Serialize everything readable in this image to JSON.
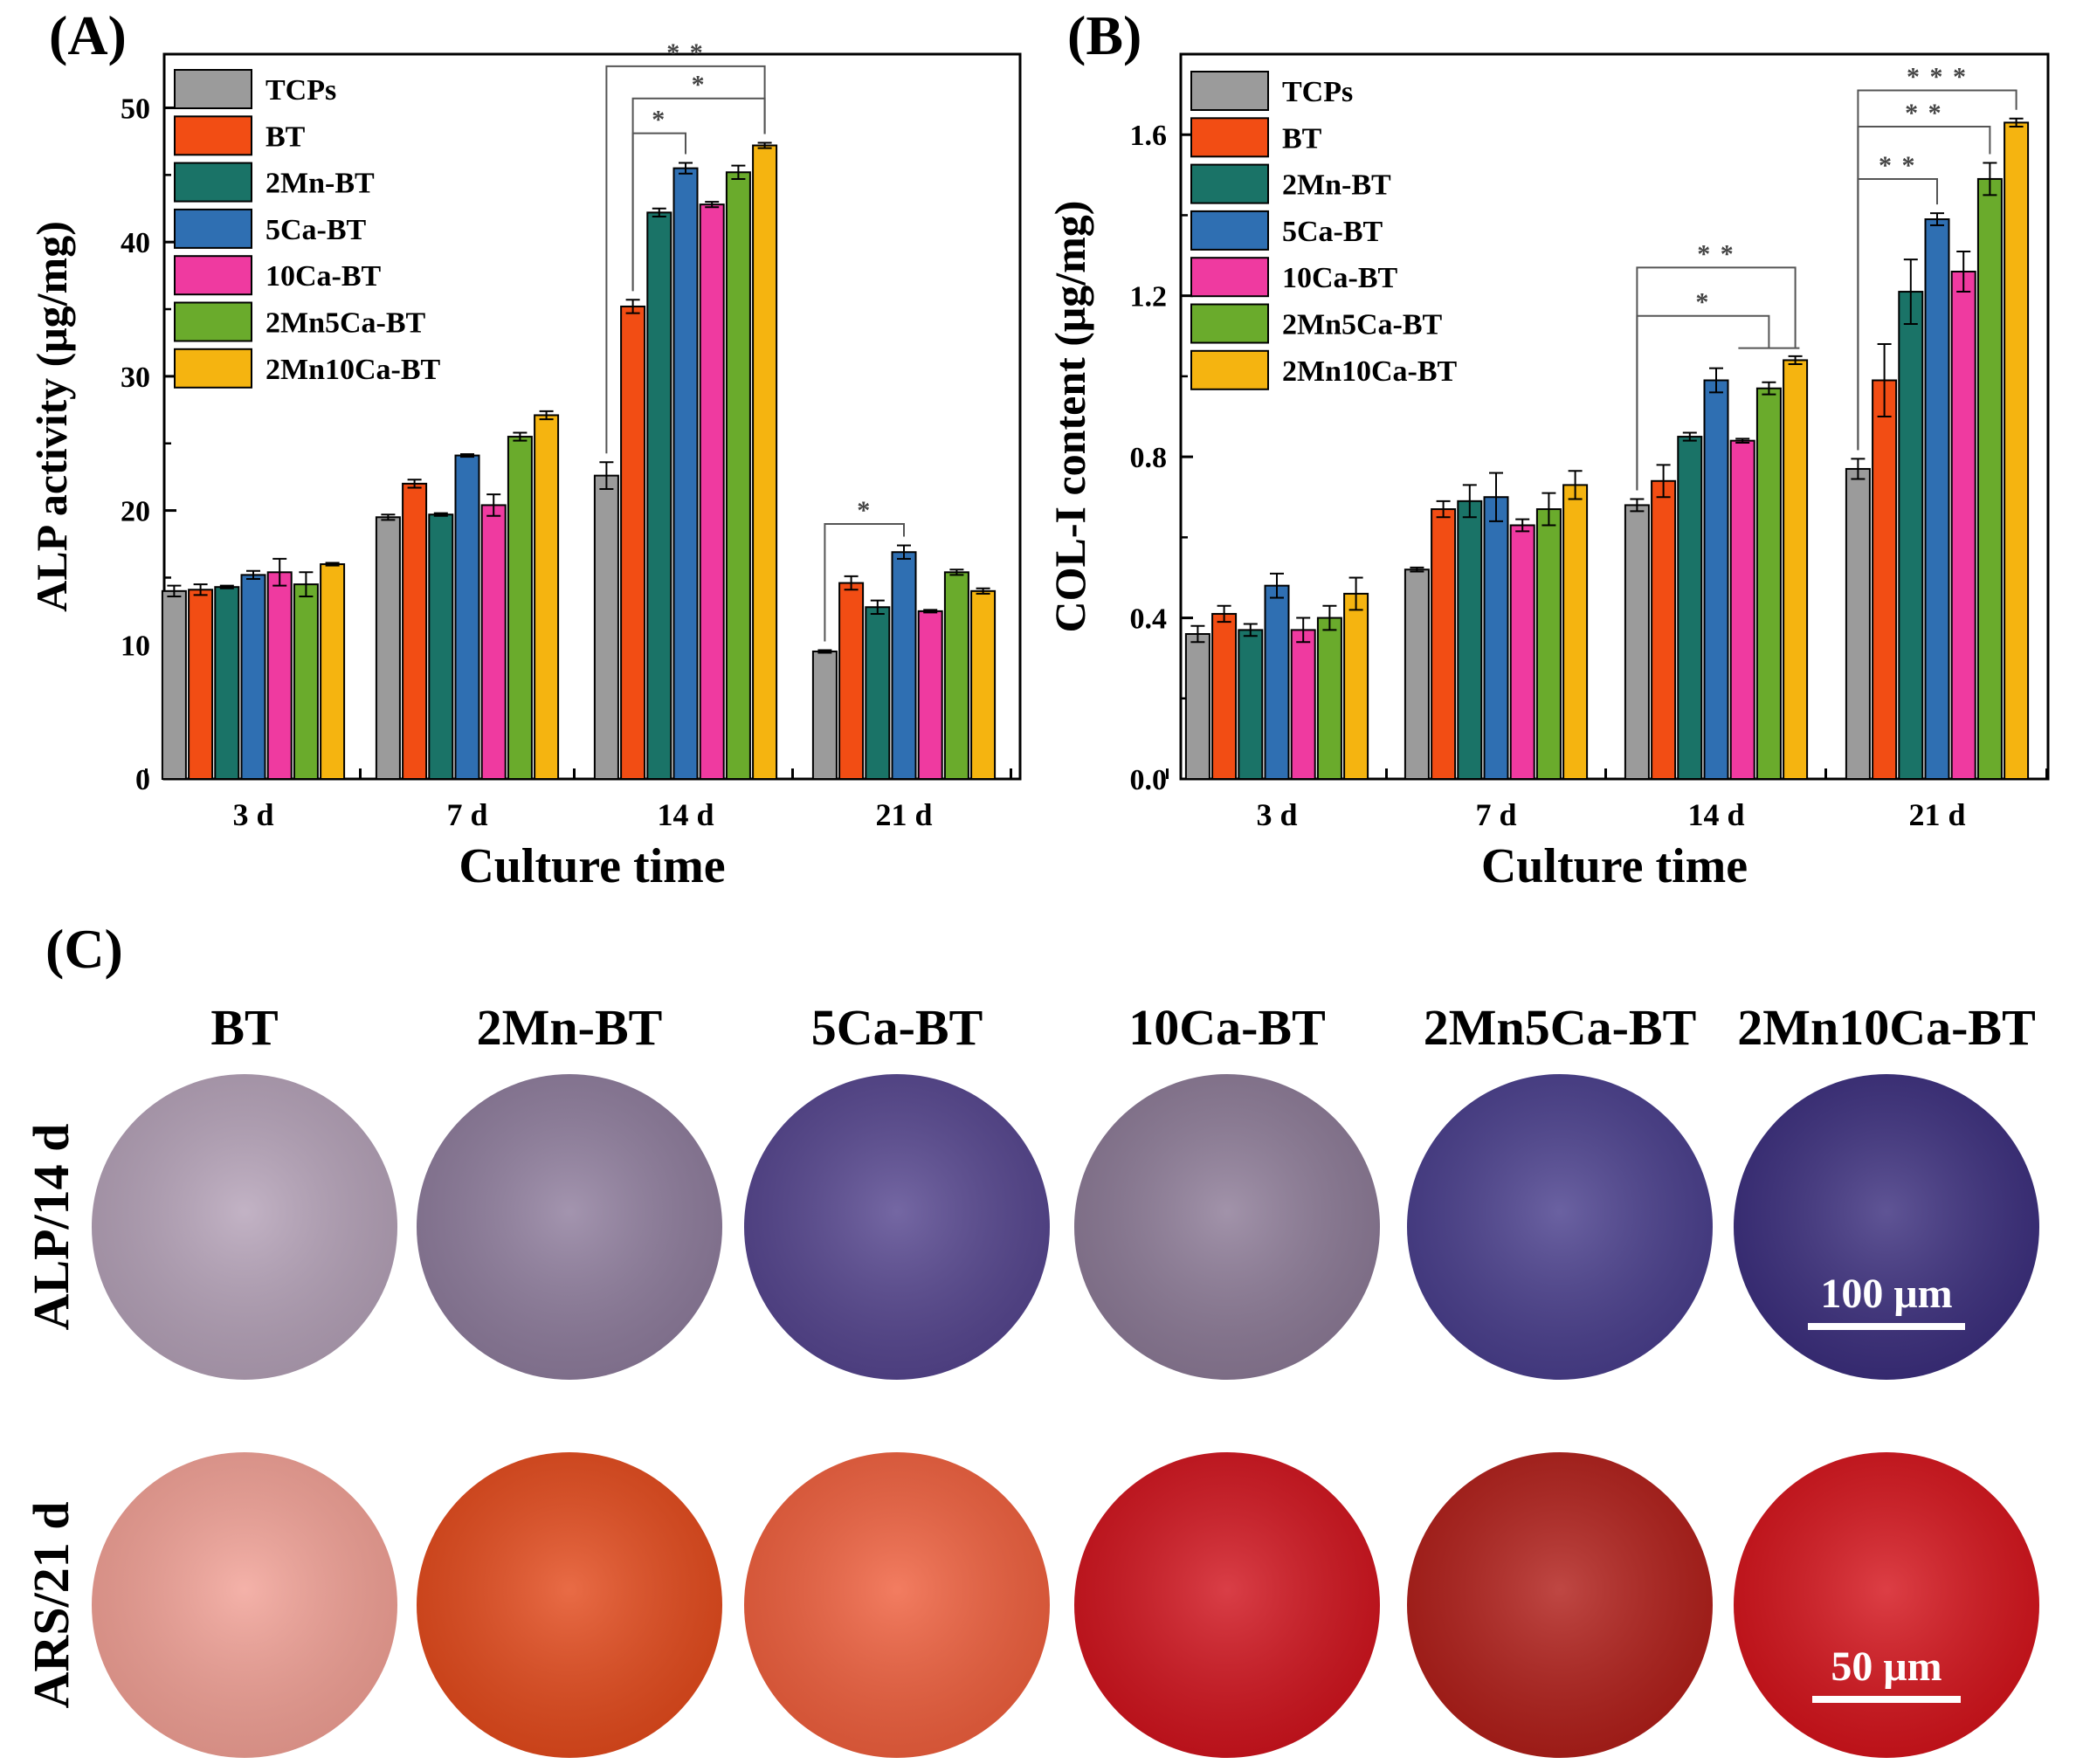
{
  "panels": {
    "a_label": "(A)",
    "b_label": "(B)",
    "c_label": "(C)"
  },
  "series_colors": {
    "TCPs": "#9b9b9b",
    "BT": "#f24d14",
    "2Mn-BT": "#1a7367",
    "5Ca-BT": "#2f6fb2",
    "10Ca-BT": "#ef3aa0",
    "2Mn5Ca-BT": "#6aab2c",
    "2Mn10Ca-BT": "#f5b410"
  },
  "chart_data": [
    {
      "id": "A",
      "type": "bar",
      "title": "",
      "categories": [
        "3 d",
        "7 d",
        "14 d",
        "21 d"
      ],
      "xlabel": "Culture time",
      "ylabel": "ALP activity (μg/mg)",
      "ylim": [
        0,
        54
      ],
      "yticks": [
        0,
        10,
        20,
        30,
        40,
        50
      ],
      "ytick_labels": [
        "0",
        "10",
        "20",
        "30",
        "40",
        "50"
      ],
      "legend_position": "top-left",
      "series": [
        {
          "name": "TCPs",
          "values": [
            14.0,
            19.5,
            22.6,
            9.5
          ],
          "errors": [
            0.4,
            0.2,
            1.0,
            0.1
          ]
        },
        {
          "name": "BT",
          "values": [
            14.1,
            22.0,
            35.2,
            14.6
          ],
          "errors": [
            0.4,
            0.3,
            0.5,
            0.5
          ]
        },
        {
          "name": "2Mn-BT",
          "values": [
            14.3,
            19.7,
            42.2,
            12.8
          ],
          "errors": [
            0.1,
            0.1,
            0.3,
            0.5
          ]
        },
        {
          "name": "5Ca-BT",
          "values": [
            15.2,
            24.1,
            45.5,
            16.9
          ],
          "errors": [
            0.3,
            0.1,
            0.4,
            0.5
          ]
        },
        {
          "name": "10Ca-BT",
          "values": [
            15.4,
            20.4,
            42.8,
            12.5
          ],
          "errors": [
            1.0,
            0.8,
            0.2,
            0.1
          ]
        },
        {
          "name": "2Mn5Ca-BT",
          "values": [
            14.5,
            25.5,
            45.2,
            15.4
          ],
          "errors": [
            0.9,
            0.3,
            0.5,
            0.2
          ]
        },
        {
          "name": "2Mn10Ca-BT",
          "values": [
            16.0,
            27.1,
            47.2,
            14.0
          ],
          "errors": [
            0.1,
            0.3,
            0.2,
            0.2
          ]
        }
      ],
      "annotations": [
        {
          "text": "* *",
          "group": 2,
          "from_series": 0,
          "to_series": 6,
          "level": 53.1
        },
        {
          "text": "*",
          "group": 2,
          "from_series": 1,
          "to_series": 6,
          "level": 50.7
        },
        {
          "text": "*",
          "group": 2,
          "from_series": 1,
          "to_series": 3,
          "level": 48.1
        },
        {
          "text": "*",
          "group": 3,
          "from_series": 0,
          "to_series": 3,
          "level": 19.0
        }
      ]
    },
    {
      "id": "B",
      "type": "bar",
      "title": "",
      "categories": [
        "3 d",
        "7 d",
        "14 d",
        "21 d"
      ],
      "xlabel": "Culture time",
      "ylabel": "COL-I content (μg/mg)",
      "ylim": [
        0,
        1.8
      ],
      "yticks": [
        0,
        0.4,
        0.8,
        1.2,
        1.6
      ],
      "ytick_labels": [
        "0.0",
        "0.4",
        "0.8",
        "1.2",
        "1.6"
      ],
      "legend_position": "top-left",
      "series": [
        {
          "name": "TCPs",
          "values": [
            0.36,
            0.52,
            0.68,
            0.77
          ],
          "errors": [
            0.02,
            0.005,
            0.015,
            0.025
          ]
        },
        {
          "name": "BT",
          "values": [
            0.41,
            0.67,
            0.74,
            0.99
          ],
          "errors": [
            0.02,
            0.02,
            0.04,
            0.09
          ]
        },
        {
          "name": "2Mn-BT",
          "values": [
            0.37,
            0.69,
            0.85,
            1.21
          ],
          "errors": [
            0.015,
            0.04,
            0.01,
            0.08
          ]
        },
        {
          "name": "5Ca-BT",
          "values": [
            0.48,
            0.7,
            0.99,
            1.39
          ],
          "errors": [
            0.03,
            0.06,
            0.03,
            0.015
          ]
        },
        {
          "name": "10Ca-BT",
          "values": [
            0.37,
            0.63,
            0.84,
            1.26
          ],
          "errors": [
            0.03,
            0.015,
            0.005,
            0.05
          ]
        },
        {
          "name": "2Mn5Ca-BT",
          "values": [
            0.4,
            0.67,
            0.97,
            1.49
          ],
          "errors": [
            0.03,
            0.04,
            0.015,
            0.04
          ]
        },
        {
          "name": "2Mn10Ca-BT",
          "values": [
            0.46,
            0.73,
            1.04,
            1.63
          ],
          "errors": [
            0.04,
            0.035,
            0.01,
            0.01
          ]
        }
      ],
      "annotations": [
        {
          "text": "* *",
          "group": 2,
          "from_series": 0,
          "to_series": 6,
          "level": 1.27
        },
        {
          "text": "*",
          "group": 2,
          "from_series": 0,
          "to_series": 5,
          "level": 1.15,
          "drop_to": 1.07
        },
        {
          "text": "* * *",
          "group": 3,
          "from_series": 0,
          "to_series": 6,
          "level": 1.71
        },
        {
          "text": "* *",
          "group": 3,
          "from_series": 0,
          "to_series": 5,
          "level": 1.62
        },
        {
          "text": "* *",
          "group": 3,
          "from_series": 0,
          "to_series": 3,
          "level": 1.49
        }
      ]
    }
  ],
  "panel_c": {
    "columns": [
      "BT",
      "2Mn-BT",
      "5Ca-BT",
      "10Ca-BT",
      "2Mn5Ca-BT",
      "2Mn10Ca-BT"
    ],
    "rows": [
      {
        "label": "ALP/14 d",
        "scale_bar": "100 μm",
        "colors": [
          "#b5a2b8",
          "#8f7d9d",
          "#56468f",
          "#8d7b97",
          "#4a3f8d",
          "#3c2f7e"
        ]
      },
      {
        "label": "ARS/21 d",
        "scale_bar": "50 μm",
        "colors": [
          "#f2a196",
          "#e44b1d",
          "#f0603e",
          "#d1141e",
          "#b11f1a",
          "#d5141c"
        ]
      }
    ]
  }
}
